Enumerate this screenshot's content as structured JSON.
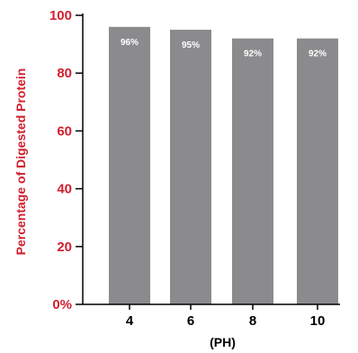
{
  "colors": {
    "axis_text": "#d11f2f",
    "bar": "#8b8b8e",
    "bar_label": "#ffffff",
    "axis_line": "#000000",
    "tick_text_x": "#000000"
  },
  "chart_data": {
    "type": "bar",
    "categories": [
      "4",
      "6",
      "8",
      "10"
    ],
    "values": [
      96,
      95,
      92,
      92
    ],
    "bar_labels": [
      "96%",
      "95%",
      "92%",
      "92%"
    ],
    "ylim": [
      0,
      100
    ],
    "yticks": [
      "0%",
      "20",
      "40",
      "60",
      "80",
      "100"
    ],
    "ylabel": "Percentage of Digested Protein",
    "xlabel": "(PH)",
    "grid": false
  }
}
